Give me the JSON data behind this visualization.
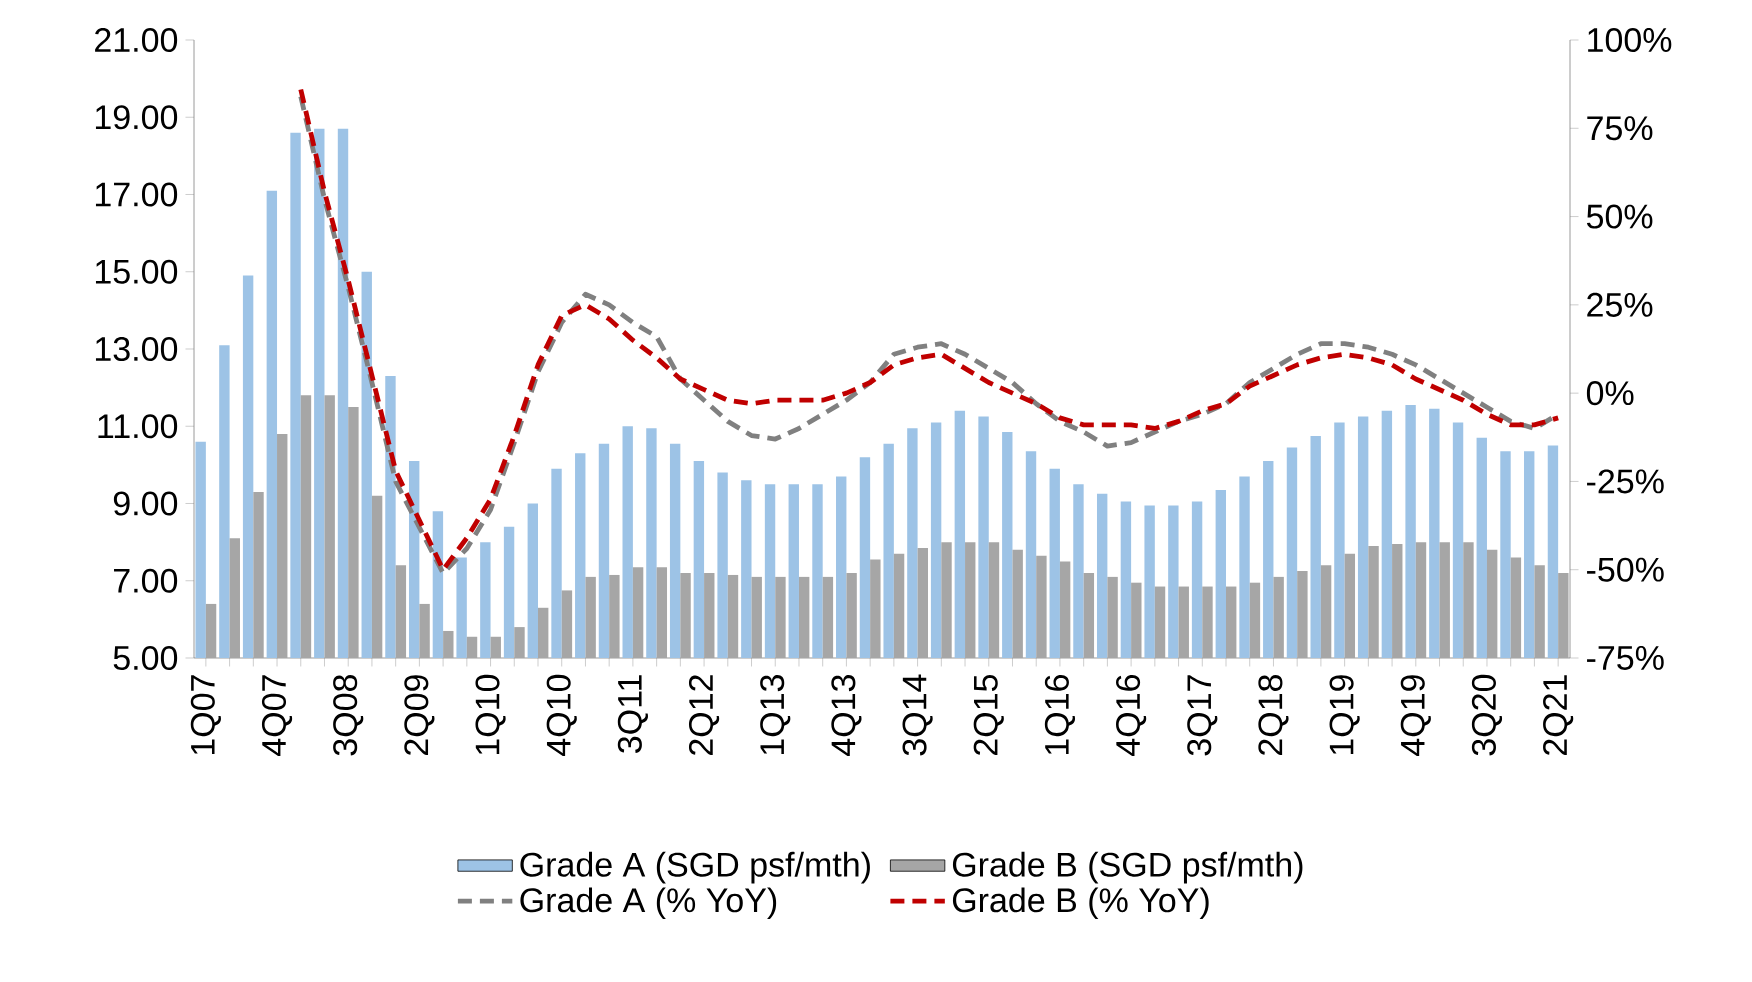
{
  "chart_data": {
    "type": "bar",
    "categories": [
      "1Q07",
      null,
      null,
      "4Q07",
      null,
      null,
      "3Q08",
      null,
      null,
      "2Q09",
      null,
      null,
      "1Q10",
      null,
      null,
      "4Q10",
      null,
      null,
      "3Q11",
      null,
      null,
      "2Q12",
      null,
      null,
      "1Q13",
      null,
      null,
      "4Q13",
      null,
      null,
      "3Q14",
      null,
      null,
      "2Q15",
      null,
      null,
      "1Q16",
      null,
      null,
      "4Q16",
      null,
      null,
      "3Q17",
      null,
      null,
      "2Q18",
      null,
      null,
      "1Q19",
      null,
      null,
      "4Q19",
      null,
      null,
      "3Q20",
      null,
      null,
      "2Q21"
    ],
    "series": [
      {
        "name": "Grade A (SGD psf/mth)",
        "type": "bar",
        "color": "#9dc3e6",
        "values": [
          10.6,
          13.1,
          14.9,
          17.1,
          18.6,
          18.7,
          18.7,
          15.0,
          12.3,
          10.1,
          8.8,
          7.6,
          8.0,
          8.4,
          9.0,
          9.9,
          10.3,
          10.55,
          11.0,
          10.95,
          10.55,
          10.1,
          9.8,
          9.6,
          9.5,
          9.5,
          9.5,
          9.7,
          10.2,
          10.55,
          10.95,
          11.1,
          11.4,
          11.25,
          10.85,
          10.35,
          9.9,
          9.5,
          9.25,
          9.05,
          8.95,
          8.95,
          9.05,
          9.35,
          9.7,
          10.1,
          10.45,
          10.75,
          11.1,
          11.25,
          11.4,
          11.55,
          11.45,
          11.1,
          10.7,
          10.35,
          10.35,
          10.5
        ]
      },
      {
        "name": "Grade B (SGD psf/mth)",
        "type": "bar",
        "color": "#a6a6a6",
        "values": [
          6.4,
          8.1,
          9.3,
          10.8,
          11.8,
          11.8,
          11.5,
          9.2,
          7.4,
          6.4,
          5.7,
          5.55,
          5.55,
          5.8,
          6.3,
          6.75,
          7.1,
          7.15,
          7.35,
          7.35,
          7.2,
          7.2,
          7.15,
          7.1,
          7.1,
          7.1,
          7.1,
          7.2,
          7.55,
          7.7,
          7.85,
          8.0,
          8.0,
          8.0,
          7.8,
          7.65,
          7.5,
          7.2,
          7.1,
          6.95,
          6.85,
          6.85,
          6.85,
          6.85,
          6.95,
          7.1,
          7.25,
          7.4,
          7.7,
          7.9,
          7.95,
          8.0,
          8.0,
          8.0,
          7.8,
          7.6,
          7.4,
          7.2
        ]
      },
      {
        "name": "Grade A (% YoY)",
        "type": "line",
        "axis": "y2",
        "color": "#808080",
        "line_style": "dashed",
        "values": [
          null,
          null,
          null,
          null,
          84,
          55,
          30,
          3,
          -25,
          -38,
          -51,
          -44,
          -33,
          -14,
          6,
          20,
          28,
          25,
          20,
          16,
          4,
          -2,
          -8,
          -12,
          -13,
          -10,
          -6,
          -2,
          3,
          11,
          13,
          14,
          11,
          7,
          3,
          -3,
          -8,
          -11,
          -15,
          -14,
          -11,
          -8,
          -6,
          -3,
          3,
          7,
          11,
          14,
          14,
          13,
          11,
          8,
          4,
          0,
          -4,
          -8,
          -10,
          -6
        ]
      },
      {
        "name": "Grade B (% YoY)",
        "type": "line",
        "axis": "y2",
        "color": "#c00000",
        "line_style": "dashed",
        "values": [
          null,
          null,
          null,
          null,
          86,
          57,
          32,
          5,
          -22,
          -36,
          -50,
          -41,
          -30,
          -12,
          8,
          22,
          25,
          21,
          15,
          10,
          4,
          1,
          -2,
          -3,
          -2,
          -2,
          -2,
          0,
          3,
          8,
          10,
          11,
          7,
          3,
          0,
          -3,
          -7,
          -9,
          -9,
          -9,
          -10,
          -8,
          -5,
          -3,
          2,
          5,
          8,
          10,
          11,
          10,
          8,
          4,
          1,
          -2,
          -6,
          -9,
          -9,
          -7
        ]
      }
    ],
    "ylim": [
      5,
      21
    ],
    "yticks": [
      {
        "value": 5,
        "label": "5.00"
      },
      {
        "value": 7,
        "label": "7.00"
      },
      {
        "value": 9,
        "label": "9.00"
      },
      {
        "value": 11,
        "label": "11.00"
      },
      {
        "value": 13,
        "label": "13.00"
      },
      {
        "value": 15,
        "label": "15.00"
      },
      {
        "value": 17,
        "label": "17.00"
      },
      {
        "value": 19,
        "label": "19.00"
      },
      {
        "value": 21,
        "label": "21.00"
      }
    ],
    "y2lim": [
      -75,
      100
    ],
    "y2ticks": [
      {
        "value": -75,
        "label": "-75%"
      },
      {
        "value": -50,
        "label": "-50%"
      },
      {
        "value": -25,
        "label": "-25%"
      },
      {
        "value": 0,
        "label": "0%"
      },
      {
        "value": 25,
        "label": "25%"
      },
      {
        "value": 50,
        "label": "50%"
      },
      {
        "value": 75,
        "label": "75%"
      },
      {
        "value": 100,
        "label": "100%"
      }
    ],
    "legend": "bottom"
  }
}
